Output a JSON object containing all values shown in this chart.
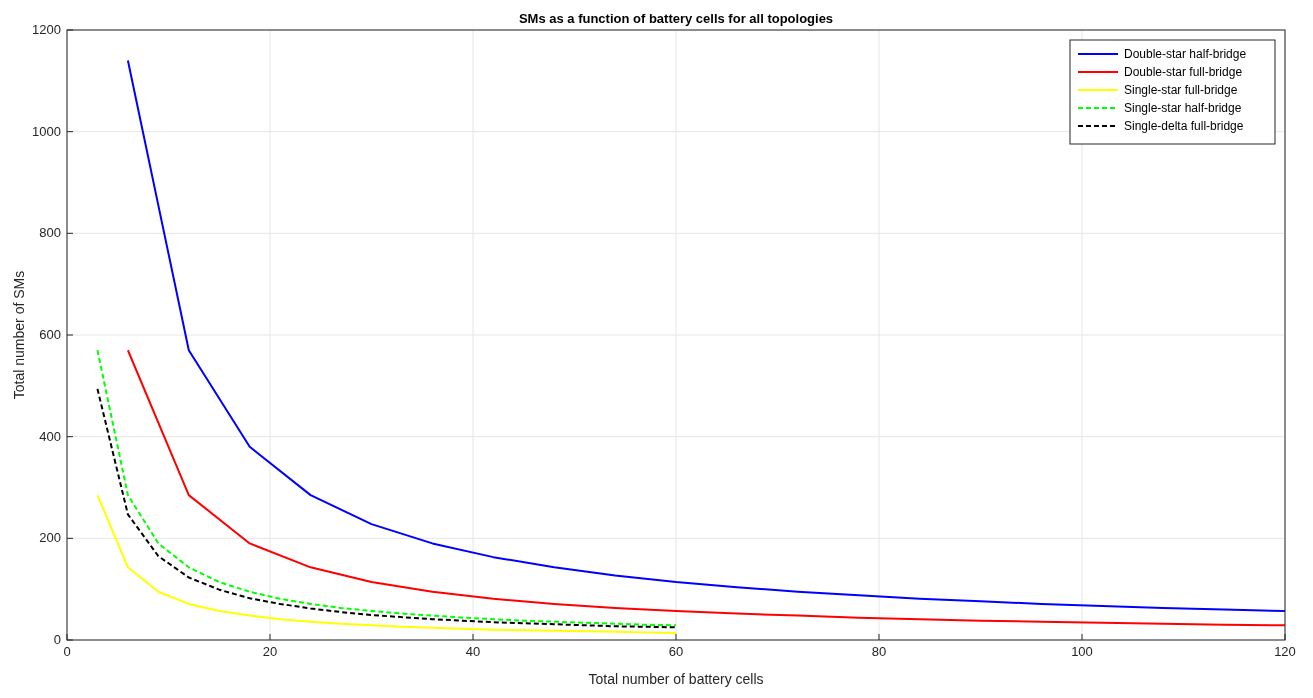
{
  "chart_data": {
    "type": "line",
    "title": "SMs as a function of battery cells for all topologies",
    "xlabel": "Total number of battery cells",
    "ylabel": "Total number of SMs",
    "xlim": [
      0,
      120
    ],
    "xticks": [
      0,
      20,
      40,
      60,
      80,
      100,
      120
    ],
    "ylim": [
      0,
      1200
    ],
    "yticks": [
      0,
      200,
      400,
      600,
      800,
      1000,
      1200
    ],
    "grid": true,
    "legend": "top right",
    "marker": "none",
    "series": [
      {
        "name": "Double-star half-bridge",
        "color": "#0000ff",
        "line_style": "solid",
        "x": [
          6,
          12,
          18,
          24,
          30,
          36,
          42,
          48,
          54,
          60,
          66,
          72,
          78,
          84,
          90,
          96,
          102,
          108,
          114,
          120
        ],
        "values": [
          1140,
          570,
          380,
          285,
          228,
          190,
          163,
          143,
          127,
          114,
          104,
          95,
          88,
          81,
          76,
          71,
          67,
          63,
          60,
          57
        ]
      },
      {
        "name": "Double-star full-bridge",
        "color": "#ff0000",
        "line_style": "solid",
        "x": [
          6,
          12,
          18,
          24,
          30,
          36,
          42,
          48,
          54,
          60,
          66,
          72,
          78,
          84,
          90,
          96,
          102,
          108,
          114,
          120
        ],
        "values": [
          570,
          285,
          190,
          143,
          114,
          95,
          81,
          71,
          63,
          57,
          52,
          48,
          44,
          41,
          38,
          36,
          34,
          32,
          30,
          29
        ]
      },
      {
        "name": "Single-star full-bridge",
        "color": "#ffff00",
        "line_style": "solid",
        "x": [
          3,
          6,
          9,
          12,
          15,
          18,
          21,
          24,
          27,
          30,
          33,
          36,
          39,
          42,
          45,
          48,
          51,
          54,
          57,
          60
        ],
        "values": [
          285,
          143,
          95,
          71,
          57,
          48,
          41,
          36,
          32,
          29,
          26,
          24,
          22,
          20,
          19,
          18,
          17,
          16,
          15,
          14
        ]
      },
      {
        "name": "Single-star half-bridge",
        "color": "#00ff00",
        "line_style": "dashed",
        "x": [
          3,
          6,
          9,
          12,
          15,
          18,
          21,
          24,
          27,
          30,
          33,
          36,
          39,
          42,
          45,
          48,
          51,
          54,
          57,
          60
        ],
        "values": [
          570,
          285,
          190,
          143,
          114,
          95,
          81,
          71,
          63,
          57,
          52,
          48,
          44,
          41,
          38,
          36,
          34,
          32,
          30,
          29
        ]
      },
      {
        "name": "Single-delta full-bridge",
        "color": "#000000",
        "line_style": "dashed",
        "x": [
          3,
          6,
          9,
          12,
          15,
          18,
          21,
          24,
          27,
          30,
          33,
          36,
          39,
          42,
          45,
          48,
          51,
          54,
          57,
          60
        ],
        "values": [
          494,
          247,
          165,
          123,
          99,
          82,
          71,
          62,
          55,
          49,
          45,
          41,
          38,
          35,
          33,
          31,
          29,
          27,
          26,
          25
        ]
      }
    ]
  }
}
